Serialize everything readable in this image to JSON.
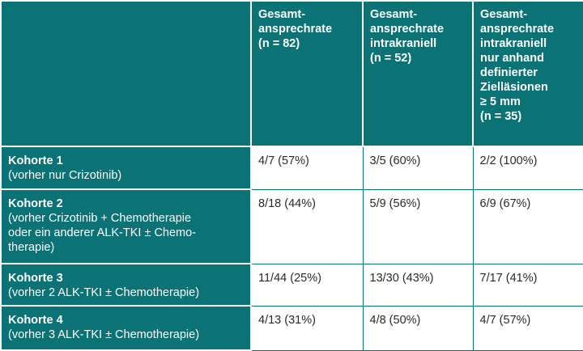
{
  "header": {
    "corner": "",
    "columns": [
      "Gesamt-\nansprechrate\n(n = 82)",
      "Gesamt-\nansprechrate\nintrakraniell\n(n = 52)",
      "Gesamt-\nansprechrate\nintrakraniell\nnur anhand\ndefinierter\nZielläsionen\n≥ 5 mm\n(n = 35)"
    ]
  },
  "rows": [
    {
      "title": "Kohorte 1",
      "subtitle": "(vorher nur Crizotinib)",
      "values": [
        "4/7 (57%)",
        "3/5 (60%)",
        "2/2 (100%)"
      ]
    },
    {
      "title": "Kohorte 2",
      "subtitle": "(vorher Crizotinib + Chemotherapie\noder ein anderer ALK-TKI ± Chemo-\ntherapie)",
      "values": [
        "8/18 (44%)",
        "5/9 (56%)",
        "6/9 (67%)"
      ]
    },
    {
      "title": "Kohorte 3",
      "subtitle": "(vorher 2 ALK-TKI ± Chemotherapie)",
      "values": [
        "11/44 (25%)",
        "13/30 (43%)",
        "7/17 (41%)"
      ]
    },
    {
      "title": "Kohorte 4",
      "subtitle": "(vorher 3 ALK-TKI ± Chemotherapie)",
      "values": [
        "4/13 (31%)",
        "4/8 (50%)",
        "4/7 (57%)"
      ]
    }
  ],
  "colors": {
    "header_bg": "#0b7276",
    "header_text": "#ffffff",
    "cell_bg": "#ffffff",
    "cell_text": "#2a2a2a"
  }
}
